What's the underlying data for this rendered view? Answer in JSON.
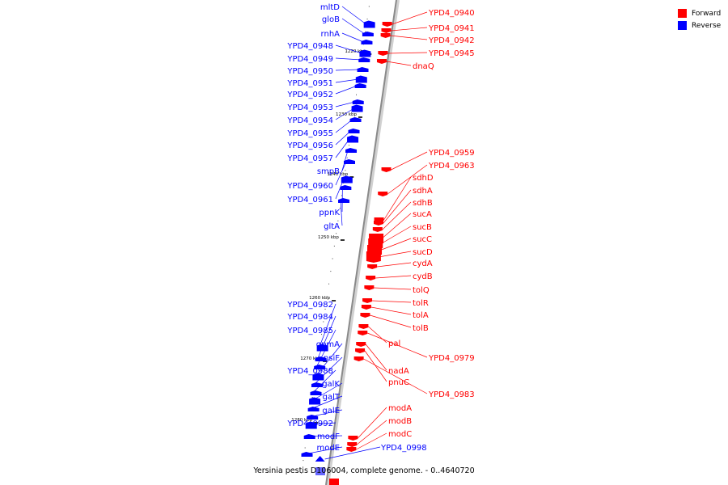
{
  "legend": {
    "forward_label": "Forward",
    "reverse_label": "Reverse",
    "forward_color": "#ff0000",
    "reverse_color": "#0000ff"
  },
  "caption": "Yersinia pestis D106004, complete genome. - 0..4640720",
  "scale_labels": [
    "1220 kbp",
    "1230 kbp",
    "1240 kbp",
    "1250 kbp",
    "1260 kbp",
    "1270 kbp",
    "1280 kbp"
  ],
  "reverse_genes": [
    "mltD",
    "gloB",
    "rnhA",
    "YPD4_0948",
    "YPD4_0949",
    "YPD4_0950",
    "YPD4_0951",
    "YPD4_0952",
    "YPD4_0953",
    "YPD4_0954",
    "YPD4_0955",
    "YPD4_0956",
    "YPD4_0957",
    "smpB",
    "YPD4_0960",
    "YPD4_0961",
    "ppnK",
    "gltA",
    "YPD4_0982",
    "YPD4_0984",
    "YPD4_0985",
    "gpmA",
    "psiF",
    "YPD4_0988",
    "galK",
    "galT",
    "galE",
    "YPD4_0992",
    "modF",
    "modE"
  ],
  "forward_genes": [
    "YPD4_0940",
    "YPD4_0941",
    "YPD4_0942",
    "YPD4_0945",
    "dnaQ",
    "YPD4_0959",
    "YPD4_0963",
    "sdhD",
    "sdhA",
    "sdhB",
    "sucA",
    "sucB",
    "sucC",
    "sucD",
    "cydA",
    "cydB",
    "tolQ",
    "tolR",
    "tolA",
    "tolB",
    "pal",
    "YPD4_0979",
    "nadA",
    "pnuC",
    "YPD4_0983",
    "modA",
    "modB",
    "modC"
  ],
  "right_reverse_genes": [
    "YPD4_0998"
  ]
}
